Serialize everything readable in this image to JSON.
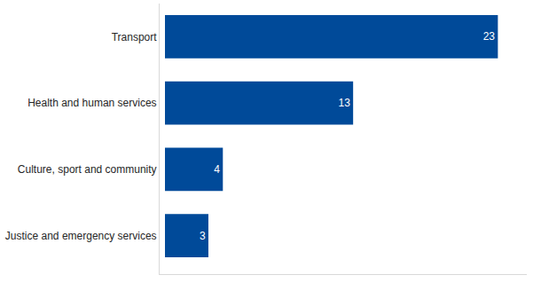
{
  "chart_data": {
    "type": "bar",
    "orientation": "horizontal",
    "categories": [
      "Transport",
      "Health and human services",
      "Culture, sport and community",
      "Justice and emergency services"
    ],
    "values": [
      23,
      13,
      4,
      3
    ],
    "color": "#004a99",
    "xlim": [
      0,
      25
    ],
    "xticks": [],
    "grid": false,
    "data_labels": true,
    "tick_labels": "y"
  }
}
